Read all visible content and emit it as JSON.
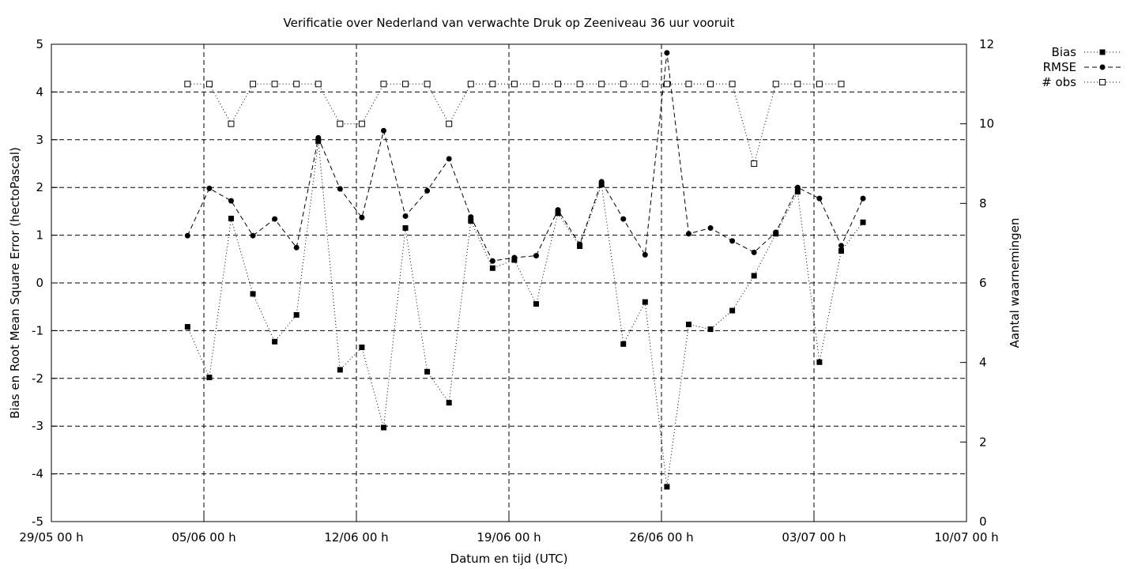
{
  "chart_data": {
    "type": "line",
    "title": "Verificatie over Nederland van verwachte Druk op Zeeniveau 36 uur vooruit",
    "xlabel": "Datum en tijd (UTC)",
    "ylabel": "Bias en Root Mean Square Error (hectoPascal)",
    "y2label": "Aantal waarnemingen",
    "x_unit": "days since 29/05 00 h",
    "xlim": [
      0,
      42
    ],
    "ylim": [
      -5,
      5
    ],
    "y2lim": [
      0,
      12
    ],
    "xticks": [
      {
        "x": 0,
        "label": "29/05 00 h"
      },
      {
        "x": 7,
        "label": "05/06 00 h"
      },
      {
        "x": 14,
        "label": "12/06 00 h"
      },
      {
        "x": 21,
        "label": "19/06 00 h"
      },
      {
        "x": 28,
        "label": "26/06 00 h"
      },
      {
        "x": 35,
        "label": "03/07 00 h"
      },
      {
        "x": 42,
        "label": "10/07 00 h"
      }
    ],
    "yticks": [
      "-5",
      "-4",
      "-3",
      "-2",
      "-1",
      "0",
      "1",
      "2",
      "3",
      "4",
      "5"
    ],
    "y2ticks": [
      "0",
      "2",
      "4",
      "6",
      "8",
      "10",
      "12"
    ],
    "grid": true,
    "legend_position": "outside-top-right",
    "x": [
      6.25,
      7.25,
      8.25,
      9.25,
      10.25,
      11.25,
      12.25,
      13.25,
      14.25,
      15.25,
      16.25,
      17.25,
      18.25,
      19.25,
      20.25,
      21.25,
      22.25,
      23.25,
      24.25,
      25.25,
      26.25,
      27.25,
      28.25,
      29.25,
      30.25,
      31.25,
      32.25,
      33.25,
      34.25,
      35.25,
      36.25,
      37.25,
      38.25
    ],
    "series": [
      {
        "name": "Bias",
        "axis": "y1",
        "marker": "filled-square",
        "line": "dotted",
        "values": [
          -0.92,
          -1.98,
          1.35,
          -0.23,
          -1.23,
          -0.67,
          2.97,
          -1.82,
          -1.35,
          -3.03,
          1.15,
          -1.86,
          -2.51,
          1.3,
          0.31,
          0.48,
          -0.44,
          1.46,
          0.77,
          2.06,
          -1.28,
          -0.4,
          -4.27,
          -0.87,
          -0.97,
          -0.58,
          0.15,
          1.03,
          1.91,
          -1.66,
          0.67,
          1.27,
          null
        ]
      },
      {
        "name": "RMSE",
        "axis": "y1",
        "marker": "filled-circle",
        "line": "dashed",
        "values": [
          0.99,
          1.98,
          1.72,
          0.99,
          1.34,
          0.74,
          3.04,
          1.97,
          1.37,
          3.19,
          1.4,
          1.93,
          2.6,
          1.38,
          0.46,
          0.53,
          0.57,
          1.53,
          0.81,
          2.12,
          1.34,
          0.59,
          4.82,
          1.03,
          1.15,
          0.88,
          0.64,
          1.06,
          2.0,
          1.77,
          0.78,
          1.77,
          null
        ]
      },
      {
        "name": "# obs",
        "axis": "y2",
        "marker": "open-square",
        "line": "dotted",
        "values": [
          11,
          11,
          10,
          11,
          11,
          11,
          11,
          10,
          10,
          11,
          11,
          11,
          10,
          11,
          11,
          11,
          11,
          11,
          11,
          11,
          11,
          11,
          11,
          11,
          11,
          11,
          9,
          11,
          11,
          11,
          11,
          null,
          null
        ]
      }
    ]
  }
}
